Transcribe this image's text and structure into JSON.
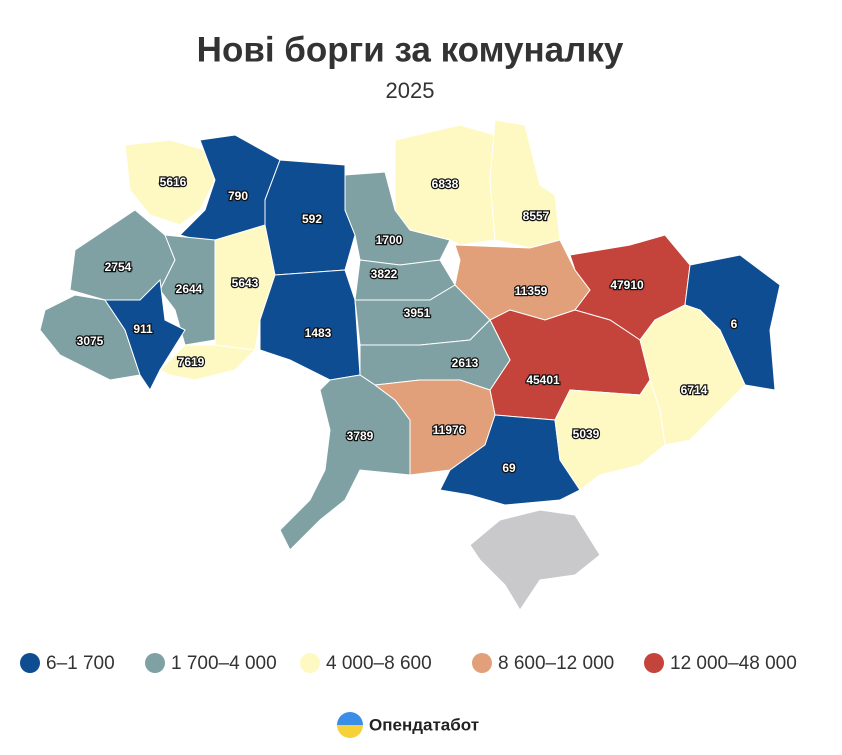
{
  "chart_data": {
    "type": "choropleth",
    "title": "Нові борги за комуналку",
    "subtitle": "2025",
    "regions": [
      {
        "value": 5616,
        "color": "#fef9c3"
      },
      {
        "value": 790,
        "color": "#0e4d92"
      },
      {
        "value": 592,
        "color": "#0e4d92"
      },
      {
        "value": 1700,
        "color": "#7fa1a4"
      },
      {
        "value": 6838,
        "color": "#fef9c3"
      },
      {
        "value": 8557,
        "color": "#fef9c3"
      },
      {
        "value": 2754,
        "color": "#7fa1a4"
      },
      {
        "value": 2644,
        "color": "#7fa1a4"
      },
      {
        "value": 5643,
        "color": "#fef9c3"
      },
      {
        "value": 3075,
        "color": "#7fa1a4"
      },
      {
        "value": 911,
        "color": "#0e4d92"
      },
      {
        "value": 7619,
        "color": "#fef9c3"
      },
      {
        "value": 1483,
        "color": "#0e4d92"
      },
      {
        "value": 3822,
        "color": "#7fa1a4"
      },
      {
        "value": 3951,
        "color": "#7fa1a4"
      },
      {
        "value": 11359,
        "color": "#e1a07a"
      },
      {
        "value": 47910,
        "color": "#c4433a"
      },
      {
        "value": 6,
        "color": "#0e4d92"
      },
      {
        "value": 6714,
        "color": "#fef9c3"
      },
      {
        "value": 45401,
        "color": "#c4433a"
      },
      {
        "value": 2613,
        "color": "#7fa1a4"
      },
      {
        "value": 3789,
        "color": "#7fa1a4"
      },
      {
        "value": 11976,
        "color": "#e1a07a"
      },
      {
        "value": 69,
        "color": "#0e4d92"
      },
      {
        "value": 5039,
        "color": "#fef9c3"
      }
    ],
    "legend": [
      {
        "label": "6–1 700",
        "color": "#0e4d92"
      },
      {
        "label": "1 700–4 000",
        "color": "#7fa1a4"
      },
      {
        "label": "4 000–8 600",
        "color": "#fef9c3"
      },
      {
        "label": "8 600–12 000",
        "color": "#e1a07a"
      },
      {
        "label": "12 000–48 000",
        "color": "#c4433a"
      }
    ],
    "source": "Опендатабот"
  }
}
